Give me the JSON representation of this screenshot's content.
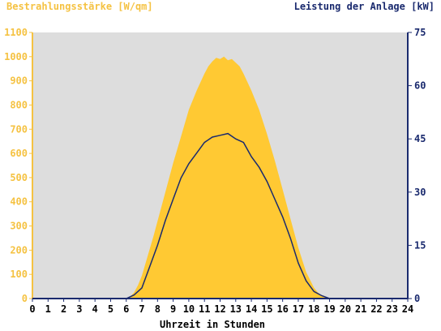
{
  "chart_data": {
    "type": "area",
    "title": "",
    "left_axis_label": "Bestrahlungsstärke [W/qm]",
    "right_axis_label": "Leistung der Anlage [kW]",
    "xlabel": "Uhrzeit in Stunden",
    "xlim": [
      0,
      24
    ],
    "x_ticks": [
      "0",
      "1",
      "2",
      "3",
      "4",
      "5",
      "6",
      "7",
      "8",
      "9",
      "10",
      "11",
      "12",
      "13",
      "14",
      "15",
      "16",
      "17",
      "18",
      "19",
      "20",
      "21",
      "22",
      "23",
      "24"
    ],
    "y_left_lim": [
      0,
      1100
    ],
    "y_left_ticks": [
      "0",
      "100",
      "200",
      "300",
      "400",
      "500",
      "600",
      "700",
      "800",
      "900",
      "1000",
      "1100"
    ],
    "y_right_lim": [
      0,
      75
    ],
    "y_right_ticks": [
      "0",
      "15",
      "30",
      "45",
      "60",
      "75"
    ],
    "grid": false,
    "series": [
      {
        "name": "Bestrahlungsstärke [W/qm]",
        "axis": "left",
        "style": "area",
        "color": "#ffc933",
        "x": [
          0,
          6,
          6.25,
          6.5,
          6.75,
          7,
          7.25,
          7.5,
          7.75,
          8,
          8.5,
          9,
          9.5,
          10,
          10.5,
          11,
          11.25,
          11.5,
          11.75,
          12,
          12.25,
          12.5,
          12.75,
          13,
          13.25,
          13.5,
          14,
          14.5,
          15,
          15.5,
          16,
          16.5,
          17,
          17.5,
          18,
          18.25,
          18.5,
          18.75,
          19,
          19.25,
          24
        ],
        "values": [
          0,
          0,
          8,
          25,
          55,
          95,
          150,
          205,
          260,
          320,
          440,
          560,
          670,
          780,
          860,
          930,
          960,
          980,
          995,
          990,
          1000,
          985,
          990,
          975,
          960,
          930,
          860,
          780,
          680,
          570,
          450,
          330,
          210,
          110,
          45,
          25,
          12,
          5,
          2,
          0,
          0
        ]
      },
      {
        "name": "Leistung der Anlage [kW]",
        "axis": "right",
        "style": "line",
        "color": "#1a2a6e",
        "x": [
          0,
          6,
          6.5,
          7,
          7.5,
          8,
          8.5,
          9,
          9.5,
          10,
          10.5,
          11,
          11.5,
          12,
          12.5,
          13,
          13.5,
          14,
          14.5,
          15,
          15.5,
          16,
          16.5,
          17,
          17.5,
          18,
          18.5,
          19,
          24
        ],
        "values": [
          0,
          0,
          1,
          3,
          9,
          15,
          22,
          28,
          34,
          38,
          41,
          44,
          45.5,
          46,
          46.5,
          45,
          44,
          40,
          37,
          33,
          28,
          23,
          17,
          10,
          5,
          2,
          0.8,
          0,
          0
        ]
      }
    ]
  }
}
